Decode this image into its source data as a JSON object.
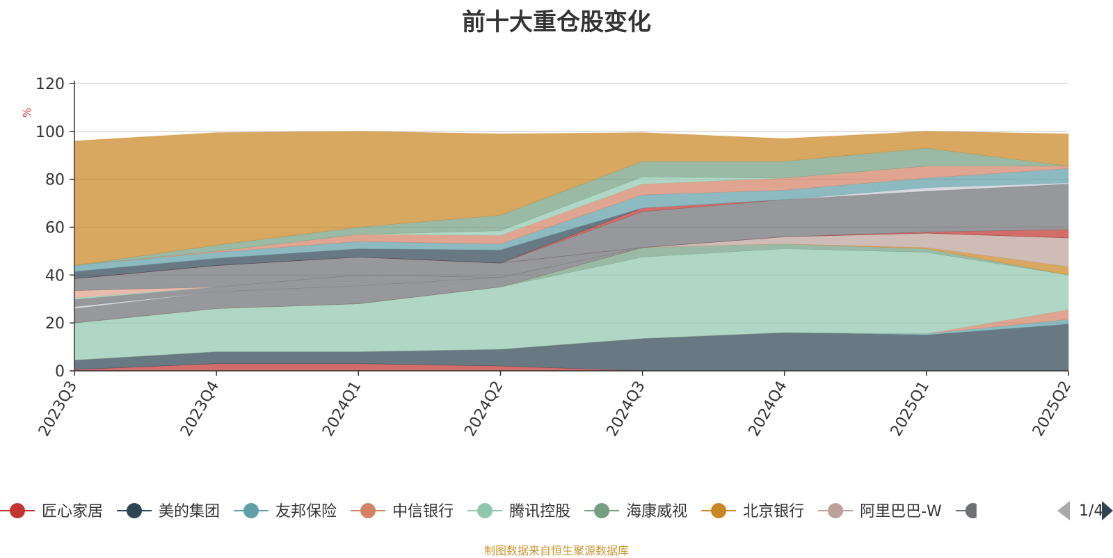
{
  "chart_data": {
    "type": "area",
    "stacked": true,
    "title": "前十大重仓股变化",
    "ylabel": "%",
    "ylim": [
      0,
      120
    ],
    "yticks": [
      0,
      20,
      40,
      60,
      80,
      100,
      120
    ],
    "grid": true,
    "legend_position": "bottom",
    "categories": [
      "2023Q3",
      "2023Q4",
      "2024Q1",
      "2024Q2",
      "2024Q3",
      "2024Q4",
      "2025Q1",
      "2025Q2"
    ],
    "series": [
      {
        "name": "匠心家居",
        "color": "#c23531",
        "values": [
          0.5,
          3.0,
          3.0,
          2.0,
          0,
          0,
          0,
          0
        ]
      },
      {
        "name": "美的集团",
        "color": "#2f4554",
        "values": [
          4.0,
          5.0,
          5.0,
          7.0,
          13.5,
          16.0,
          15.0,
          19.5
        ]
      },
      {
        "name": "友邦保险",
        "color": "#61a0a8",
        "values": [
          0,
          0,
          0,
          0,
          0,
          0,
          0.5,
          2.0
        ]
      },
      {
        "name": "中信银行",
        "color": "#d48265",
        "values": [
          0,
          0,
          0,
          0,
          0,
          0,
          0,
          4.0
        ]
      },
      {
        "name": "腾讯控股",
        "color": "#91c7ae",
        "values": [
          15.5,
          18.0,
          20.0,
          26.0,
          34.0,
          35.0,
          34.0,
          14.5
        ]
      },
      {
        "name": "海康威视",
        "color": "#749f83",
        "values": [
          0,
          0,
          0,
          0,
          4.0,
          2.0,
          1.5,
          0
        ]
      },
      {
        "name": "北京银行",
        "color": "#ca8622",
        "values": [
          0,
          0,
          0,
          0,
          0,
          0,
          0.5,
          3.5
        ]
      },
      {
        "name": "阿里巴巴-W",
        "color": "#bda29a",
        "values": [
          0,
          0,
          0,
          0,
          0,
          3.0,
          6.0,
          12.0
        ]
      },
      {
        "name": "",
        "color": "#6e7074",
        "values": [
          6.0,
          7.0,
          7.5,
          4.0,
          0,
          0,
          0,
          0
        ]
      },
      {
        "name": "",
        "color": "#c4ccd3",
        "values": [
          0.8,
          0,
          0,
          0,
          0,
          0,
          0,
          0
        ]
      },
      {
        "name": "",
        "color": "#6e7074",
        "values": [
          3.0,
          2.0,
          4.5,
          0,
          0,
          0,
          0,
          0
        ]
      },
      {
        "name": "",
        "color": "#91c7ae",
        "values": [
          0.7,
          0,
          0,
          0,
          0,
          0,
          0,
          0
        ]
      },
      {
        "name": "",
        "color": "#e1a18c",
        "values": [
          3.0,
          0,
          0,
          0,
          0,
          0,
          0,
          0
        ]
      },
      {
        "name": "",
        "color": "#6e7074",
        "values": [
          5.0,
          9.0,
          7.5,
          6.0,
          0,
          0,
          0,
          0
        ]
      },
      {
        "name": "",
        "color": "#c23531",
        "values": [
          0,
          0,
          0,
          0,
          0,
          0,
          0.5,
          3.5
        ]
      },
      {
        "name": "",
        "color": "#6e7074",
        "values": [
          0,
          0,
          0,
          0,
          15.0,
          15.5,
          17.0,
          19.0
        ]
      },
      {
        "name": "",
        "color": "#c23531",
        "values": [
          0,
          0,
          0,
          0,
          1.5,
          0,
          0,
          0
        ]
      },
      {
        "name": "",
        "color": "#2f4554",
        "values": [
          3.0,
          3.0,
          3.5,
          5.5,
          0,
          0,
          0,
          0
        ]
      },
      {
        "name": "",
        "color": "#c4ccd3",
        "values": [
          0,
          0,
          0,
          0,
          0,
          0,
          1.5,
          0.5
        ]
      },
      {
        "name": "",
        "color": "#61a0a8",
        "values": [
          2.5,
          2.5,
          3.0,
          2.5,
          5.5,
          4.0,
          4.0,
          6.0
        ]
      },
      {
        "name": "",
        "color": "#d48265",
        "values": [
          0,
          0.5,
          3.0,
          3.5,
          4.5,
          5.0,
          5.0,
          1.0
        ]
      },
      {
        "name": "",
        "color": "#91c7ae",
        "values": [
          0,
          0,
          0,
          2.0,
          3.0,
          0,
          0,
          0
        ]
      },
      {
        "name": "",
        "color": "#749f83",
        "values": [
          0,
          2.5,
          3.0,
          6.5,
          6.5,
          7.0,
          7.5,
          0
        ]
      },
      {
        "name": "",
        "color": "#ca8622",
        "values": [
          52.0,
          47.0,
          40.0,
          34.0,
          12.0,
          9.5,
          7.0,
          13.5
        ]
      }
    ]
  },
  "legend": {
    "page_indicator": "1/4"
  },
  "footer": "制图数据来自恒生聚源数据库"
}
